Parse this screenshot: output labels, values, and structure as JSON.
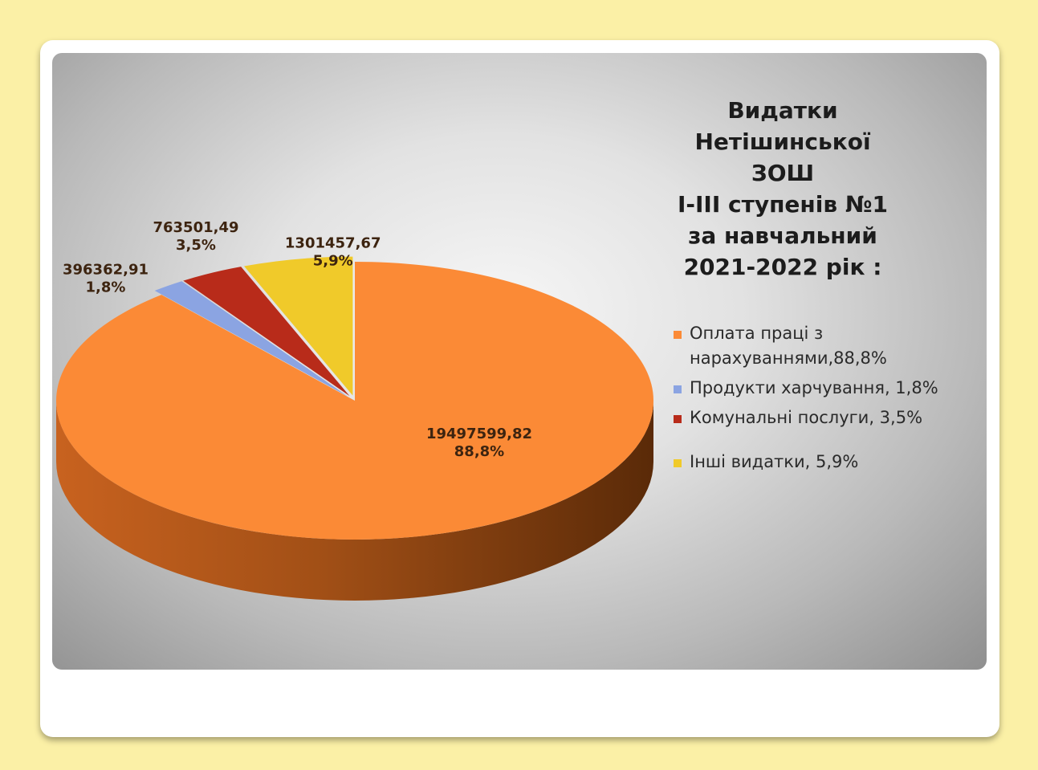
{
  "chart_data": {
    "type": "pie",
    "title": "Видатки\nНетішинської ЗОШ\nI-III ступенів №1\nза навчальний\n2021-2022 рік :",
    "legend_position": "right",
    "series": [
      {
        "name": "Оплата праці з нарахуваннями,88,8%",
        "value": 19497599.82,
        "value_label": "19497599,82",
        "percent_label": "88,8%",
        "color": "#fb8a36"
      },
      {
        "name": "Продукти харчування, 1,8%",
        "value": 396362.91,
        "value_label": "396362,91",
        "percent_label": "1,8%",
        "color": "#8ba4e2"
      },
      {
        "name": "Комунальні послуги, 3,5%",
        "value": 763501.49,
        "value_label": "763501,49",
        "percent_label": "3,5%",
        "color": "#b82b1a"
      },
      {
        "name": "Інші видатки, 5,9%",
        "value": 1301457.67,
        "value_label": "1301457,67",
        "percent_label": "5,9%",
        "color": "#f0ca2a"
      }
    ]
  }
}
